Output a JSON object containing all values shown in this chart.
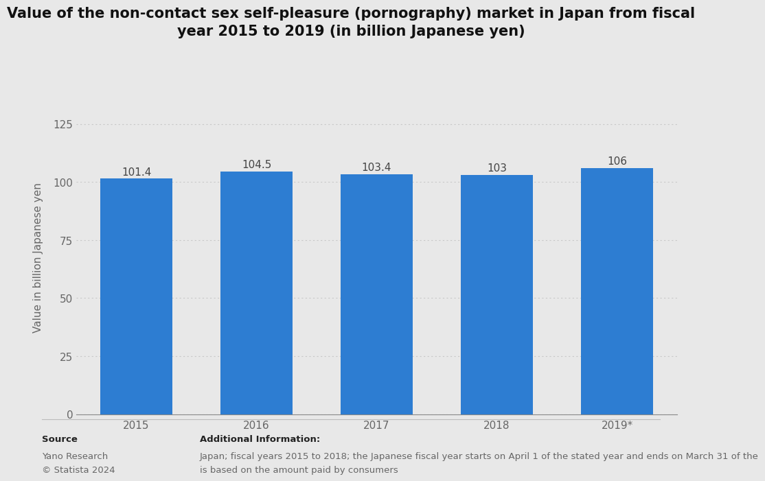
{
  "categories": [
    "2015",
    "2016",
    "2017",
    "2018",
    "2019*"
  ],
  "values": [
    101.4,
    104.5,
    103.4,
    103,
    106
  ],
  "bar_color": "#2d7dd2",
  "title_line1": "Value of the non-contact sex self-pleasure (pornography) market in Japan from fiscal",
  "title_line2": "year 2015 to 2019 (in billion Japanese yen)",
  "ylabel": "Value in billion Japanese yen",
  "ylim": [
    0,
    135
  ],
  "yticks": [
    0,
    25,
    50,
    75,
    100,
    125
  ],
  "background_color": "#e8e8e8",
  "plot_bg_color": "#e8e8e8",
  "grid_color": "#c8c8c8",
  "source_label": "Source",
  "source_text1": "Yano Research",
  "source_text2": "© Statista 2024",
  "addinfo_label": "Additional Information:",
  "addinfo_text1": "Japan; fiscal years 2015 to 2018; the Japanese fiscal year starts on April 1 of the stated year and ends on March 31 of the",
  "addinfo_text2": "is based on the amount paid by consumers",
  "label_fontsize": 11,
  "title_fontsize": 15,
  "axis_fontsize": 11,
  "footer_fontsize": 9.5
}
